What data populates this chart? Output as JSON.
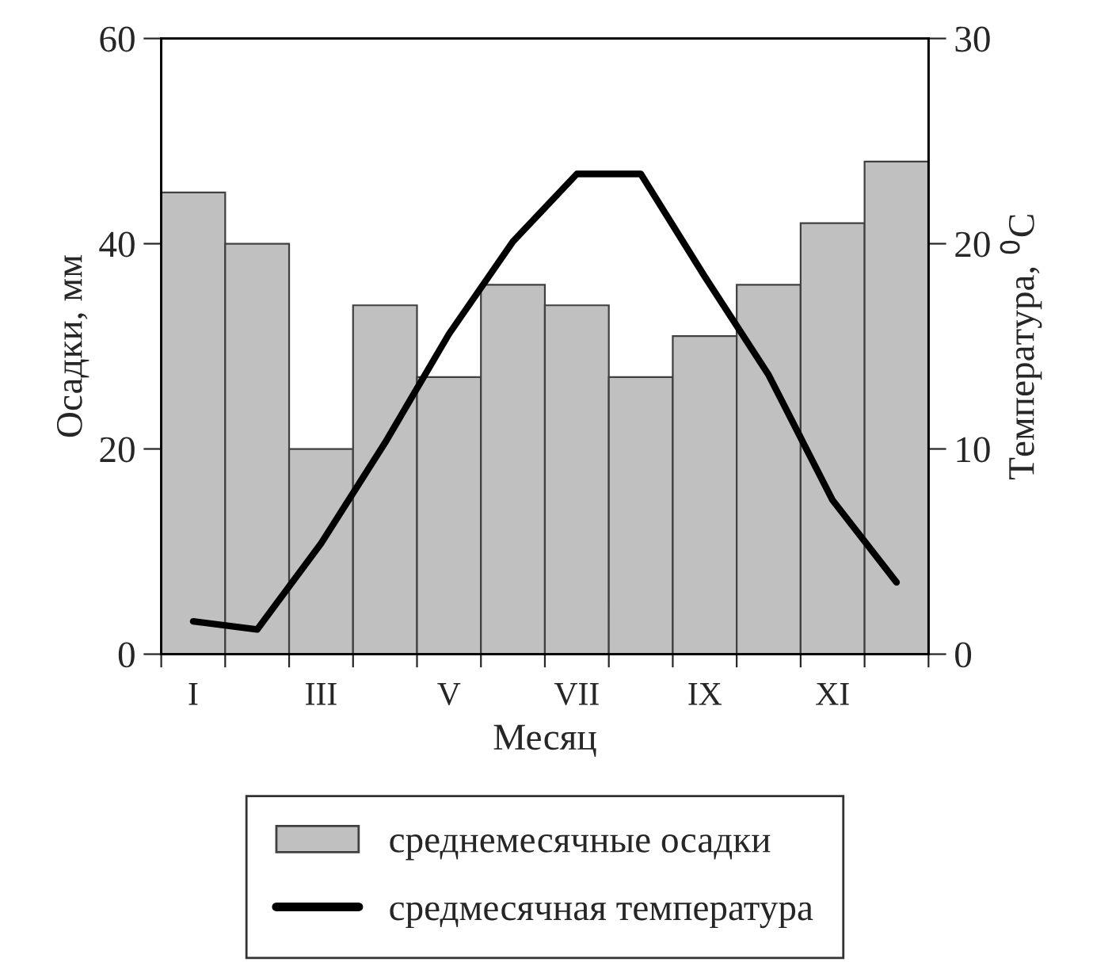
{
  "chart_data": {
    "type": "bar",
    "xlabel": "Месяц",
    "ylabel": "Осадки, мм",
    "y2label": "Температура, $^{0}$C",
    "categories": [
      "I",
      null,
      "III",
      null,
      "V",
      null,
      "VII",
      null,
      "IX",
      null,
      "XI",
      null
    ],
    "series": [
      {
        "name": "среднемесячные осадки",
        "color": "#c0c0c0",
        "values": [
          45,
          40,
          20,
          34,
          27,
          36,
          34,
          27,
          31,
          36,
          42,
          48
        ]
      },
      {
        "name": "средмесячная температура",
        "type": "line",
        "axis": "y2",
        "color": "#000000",
        "values": [
          1.6,
          1.2,
          5.4,
          10.3,
          15.6,
          20.1,
          23.4,
          23.4,
          18.4,
          13.6,
          7.5,
          3.5
        ]
      }
    ],
    "ylim": [
      0,
      60
    ],
    "yticks": [
      0,
      20,
      40,
      60
    ],
    "y2lim": [
      0,
      30
    ],
    "y2ticks": [
      0,
      10,
      20,
      30
    ],
    "grid": false,
    "legend": "bottom",
    "marker": "none",
    "line_style": "solid"
  }
}
